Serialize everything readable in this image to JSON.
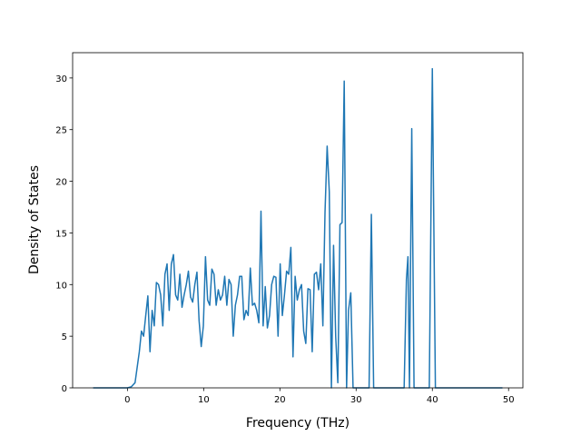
{
  "chart_data": {
    "type": "line",
    "xlabel": "Frequency (THz)",
    "ylabel": "Density of States",
    "x": [
      -4.5,
      0,
      0.5,
      1.0,
      1.28,
      1.56,
      1.84,
      2.12,
      2.4,
      2.68,
      2.96,
      3.24,
      3.52,
      3.8,
      4.08,
      4.36,
      4.64,
      4.92,
      5.2,
      5.48,
      5.76,
      6.04,
      6.32,
      6.6,
      6.88,
      7.16,
      7.44,
      7.72,
      8.0,
      8.28,
      8.56,
      8.84,
      9.12,
      9.4,
      9.68,
      9.96,
      10.24,
      10.52,
      10.8,
      11.08,
      11.36,
      11.64,
      11.92,
      12.2,
      12.48,
      12.76,
      13.04,
      13.32,
      13.6,
      13.88,
      14.16,
      14.44,
      14.72,
      15.0,
      15.28,
      15.56,
      15.84,
      16.12,
      16.4,
      16.68,
      16.96,
      17.24,
      17.52,
      17.8,
      18.08,
      18.36,
      18.64,
      18.92,
      19.2,
      19.48,
      19.76,
      20.04,
      20.32,
      20.6,
      20.88,
      21.16,
      21.44,
      21.72,
      22.0,
      22.28,
      22.56,
      22.84,
      23.12,
      23.4,
      23.68,
      23.96,
      24.24,
      24.52,
      24.8,
      25.08,
      25.36,
      25.64,
      25.92,
      26.2,
      26.48,
      26.76,
      27.04,
      27.32,
      27.6,
      27.88,
      28.16,
      28.44,
      28.75,
      29.0,
      29.3,
      29.6,
      31.7,
      32.0,
      32.3,
      36.3,
      36.6,
      36.8,
      37.0,
      37.3,
      37.6,
      39.6,
      40.0,
      40.4,
      49.2
    ],
    "series": [
      {
        "color": "#1f77b4",
        "values": [
          0,
          0,
          0.1,
          0.5,
          2,
          3.5,
          5.5,
          5,
          7,
          8.9,
          3.5,
          7.5,
          6,
          10.2,
          10,
          9,
          6,
          11,
          12,
          7.5,
          12,
          12.9,
          9,
          8.5,
          11,
          7.8,
          9,
          10,
          11.3,
          8.8,
          8.3,
          10,
          11.2,
          6.5,
          4,
          6,
          12.7,
          8.5,
          8,
          11.5,
          11,
          8,
          9.5,
          8.5,
          9,
          10.8,
          8,
          10.5,
          10,
          5,
          8,
          9,
          10.8,
          10.8,
          6.6,
          7.5,
          7,
          11.6,
          8,
          8.2,
          7.5,
          6.3,
          17.1,
          6,
          9.8,
          5.8,
          7,
          10,
          10.8,
          10.7,
          5,
          12,
          7,
          9,
          11.3,
          11,
          13.6,
          3,
          10.8,
          8.5,
          9.5,
          10,
          5.5,
          4.3,
          9.6,
          9.5,
          3.5,
          11,
          11.2,
          9.5,
          12,
          6,
          17,
          23.4,
          19,
          0,
          13.8,
          5,
          0.5,
          15.8,
          16,
          29.7,
          0,
          7.5,
          9.2,
          0,
          0,
          16.8,
          0,
          0,
          10.5,
          12.7,
          0,
          25.1,
          0,
          0,
          30.9,
          0,
          0
        ]
      }
    ],
    "xlim": [
      -7.19,
      51.88
    ],
    "ylim": [
      0,
      32.45
    ],
    "xticks": [
      0,
      10,
      20,
      30,
      40,
      50
    ],
    "yticks": [
      0,
      5,
      10,
      15,
      20,
      25,
      30
    ]
  }
}
